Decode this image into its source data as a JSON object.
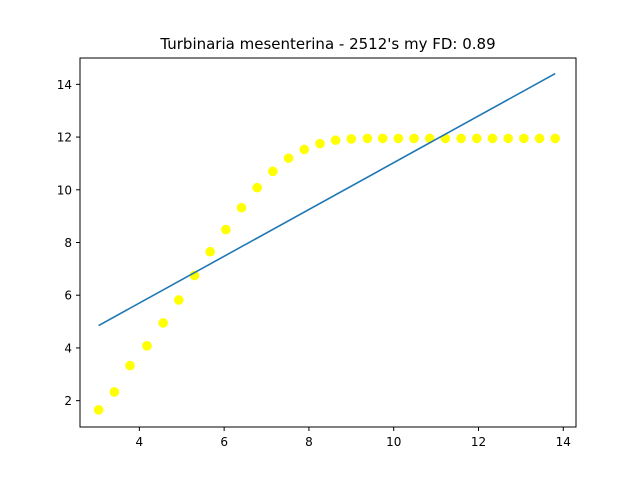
{
  "chart_data": {
    "type": "scatter",
    "title": "Turbinaria mesenterina - 2512's my FD: 0.89",
    "xlabel": "",
    "ylabel": "",
    "xlim": [
      2.6,
      14.3
    ],
    "ylim": [
      1.0,
      15.0
    ],
    "xticks": [
      4,
      6,
      8,
      10,
      12,
      14
    ],
    "yticks": [
      2,
      4,
      6,
      8,
      10,
      12,
      14
    ],
    "grid": false,
    "colors": {
      "points": "#ffff00",
      "fit_line": "#1f77b4"
    },
    "series": [
      {
        "type": "scatter",
        "x": [
          3.04,
          3.41,
          3.78,
          4.18,
          4.56,
          4.93,
          5.3,
          5.67,
          6.04,
          6.41,
          6.78,
          7.15,
          7.52,
          7.89,
          8.26,
          8.63,
          9.0,
          9.38,
          9.74,
          10.11,
          10.48,
          10.85,
          11.22,
          11.59,
          11.96,
          12.33,
          12.7,
          13.07,
          13.44,
          13.81
        ],
        "y": [
          1.65,
          2.33,
          3.33,
          4.08,
          4.95,
          5.82,
          6.75,
          7.65,
          8.49,
          9.32,
          10.08,
          10.7,
          11.2,
          11.53,
          11.75,
          11.88,
          11.93,
          11.95,
          11.95,
          11.95,
          11.95,
          11.95,
          11.95,
          11.95,
          11.95,
          11.95,
          11.95,
          11.95,
          11.95,
          11.95
        ]
      },
      {
        "type": "line",
        "x": [
          3.04,
          13.81
        ],
        "y": [
          4.85,
          14.41
        ]
      }
    ]
  }
}
